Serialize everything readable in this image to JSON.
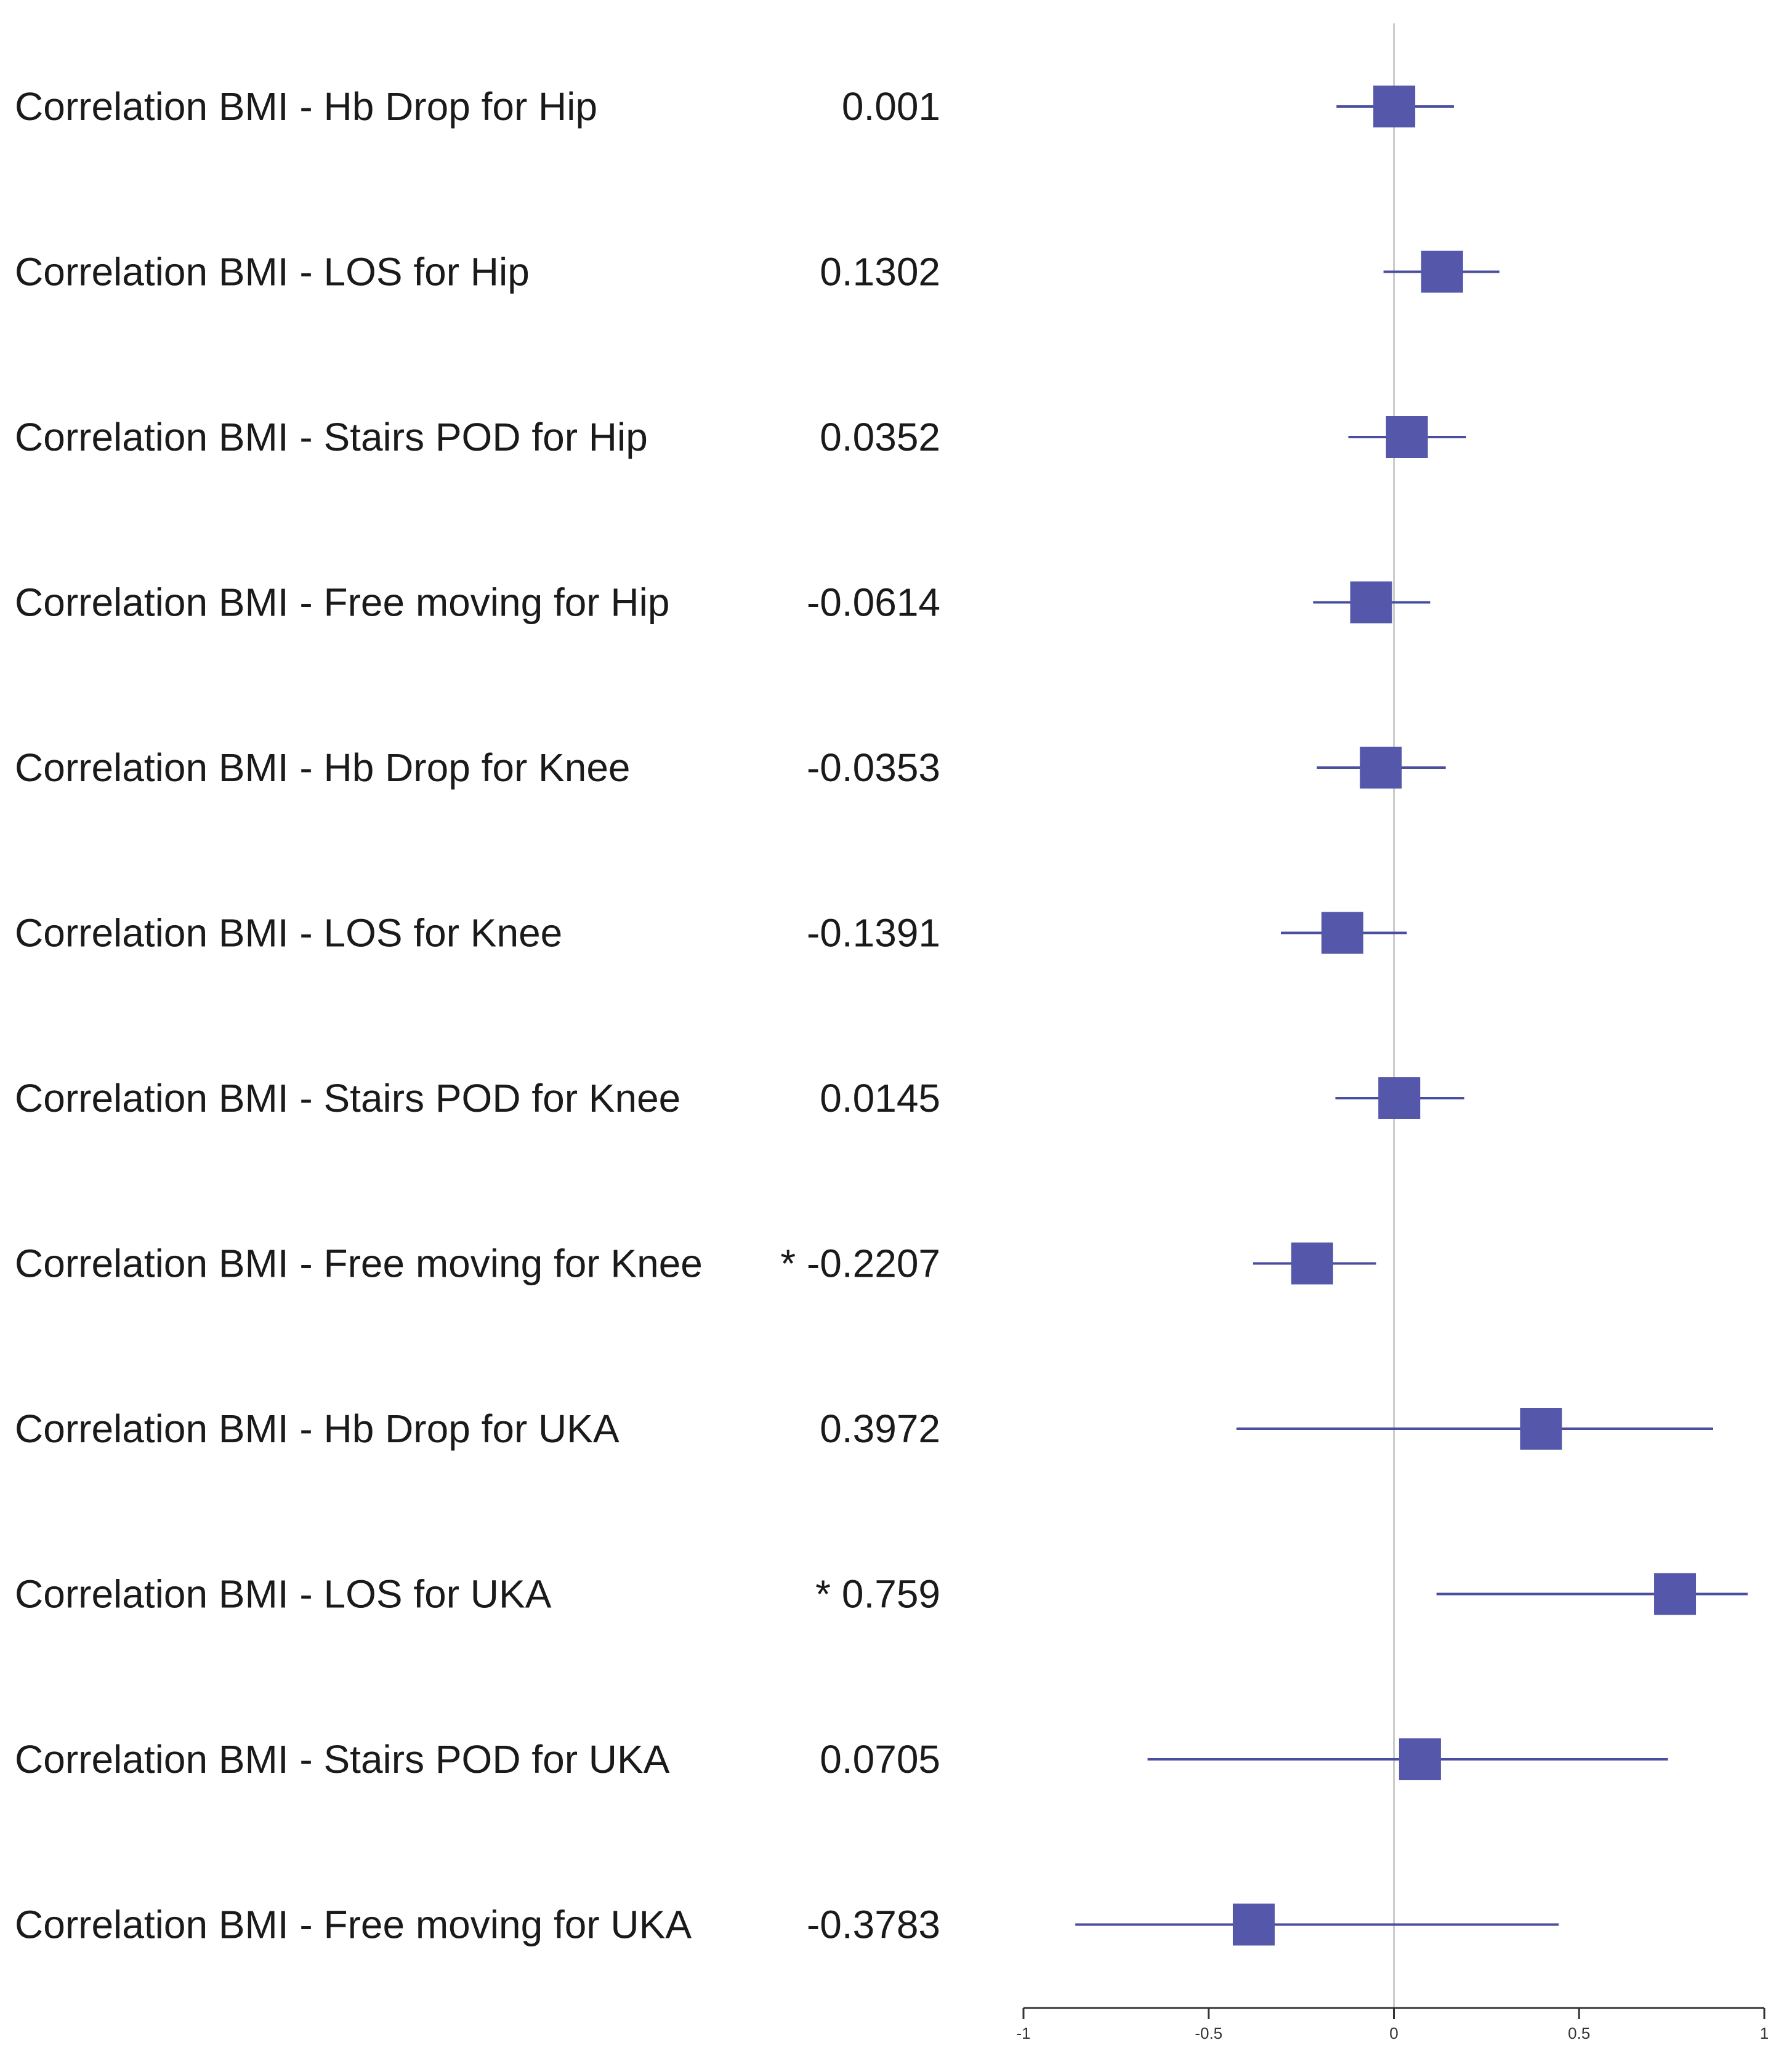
{
  "chart_data": {
    "type": "forest",
    "rows": [
      {
        "label": "Correlation BMI - Hb Drop for Hip",
        "value_text": "0.001",
        "estimate": 0.001,
        "ci": [
          -0.155,
          0.162
        ]
      },
      {
        "label": "Correlation BMI - LOS for Hip",
        "value_text": "0.1302",
        "estimate": 0.1302,
        "ci": [
          -0.028,
          0.285
        ]
      },
      {
        "label": "Correlation BMI - Stairs POD for Hip",
        "value_text": "0.0352",
        "estimate": 0.0352,
        "ci": [
          -0.123,
          0.195
        ]
      },
      {
        "label": "Correlation BMI - Free moving for Hip",
        "value_text": "-0.0614",
        "estimate": -0.0614,
        "ci": [
          -0.218,
          0.098
        ]
      },
      {
        "label": "Correlation BMI - Hb Drop for Knee",
        "value_text": "-0.0353",
        "estimate": -0.0353,
        "ci": [
          -0.208,
          0.14
        ]
      },
      {
        "label": "Correlation BMI - LOS for Knee",
        "value_text": "-0.1391",
        "estimate": -0.1391,
        "ci": [
          -0.305,
          0.035
        ]
      },
      {
        "label": "Correlation BMI - Stairs POD for Knee",
        "value_text": "0.0145",
        "estimate": 0.0145,
        "ci": [
          -0.158,
          0.19
        ]
      },
      {
        "label": "Correlation BMI - Free moving for Knee",
        "value_text": "* -0.2207",
        "estimate": -0.2207,
        "ci": [
          -0.38,
          -0.048
        ]
      },
      {
        "label": "Correlation BMI - Hb Drop for UKA",
        "value_text": "0.3972",
        "estimate": 0.3972,
        "ci": [
          -0.425,
          0.862
        ]
      },
      {
        "label": "Correlation BMI - LOS for UKA",
        "value_text": "* 0.759",
        "estimate": 0.759,
        "ci": [
          0.115,
          0.955
        ]
      },
      {
        "label": "Correlation BMI - Stairs POD for UKA",
        "value_text": "0.0705",
        "estimate": 0.0705,
        "ci": [
          -0.665,
          0.74
        ]
      },
      {
        "label": "Correlation BMI - Free moving for UKA",
        "value_text": "-0.3783",
        "estimate": -0.3783,
        "ci": [
          -0.86,
          0.445
        ]
      }
    ],
    "x_axis": {
      "range": [
        -1,
        1
      ],
      "ticks": [
        -1,
        -0.5,
        0,
        0.5,
        1
      ],
      "tick_labels": [
        "-1",
        "-0.5",
        "0",
        "0.5",
        "1"
      ]
    },
    "reference_line": 0,
    "colors": {
      "marker": "#5558aa",
      "interval": "#4a4e9e",
      "reference_line": "#cccccc",
      "axis": "#333333"
    }
  }
}
